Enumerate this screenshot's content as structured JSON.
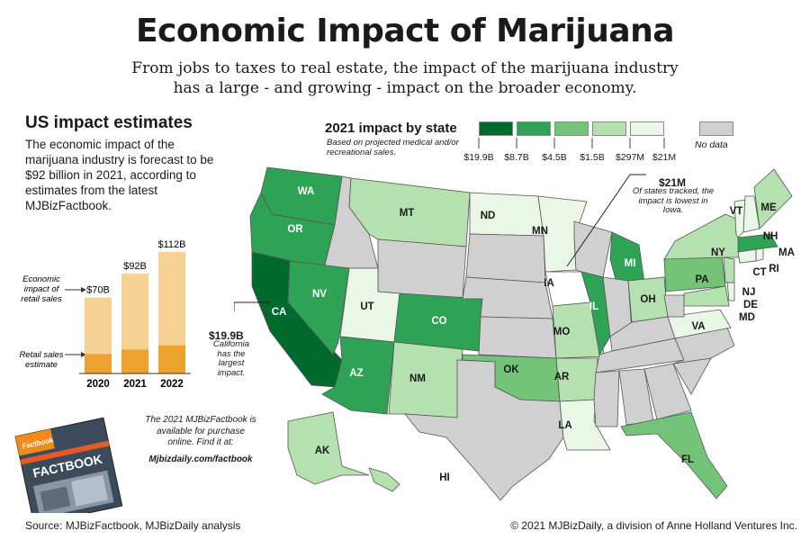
{
  "title": "Economic Impact of Marijuana",
  "subtitle_line1": "From jobs to taxes to real estate, the impact of the marijuana industry",
  "subtitle_line2": "has a large - and growing - impact on the broader economy.",
  "us_section": {
    "heading": "US impact estimates",
    "text": "The economic impact of the marijuana industry is forecast to be $92 billion in 2021, according to estimates from the latest MJBizFactbook."
  },
  "factbook": {
    "cover_brand": "Factbook",
    "cover_title": "FACTBOOK",
    "note": "The 2021 MJBizFactbook is available for purchase online. Find it at:",
    "link": "Mjbizdaily.com/factbook"
  },
  "footer": {
    "source": "Source: MJBizFactbook, MJBizDaily analysis",
    "copyright": "© 2021 MJBizDaily, a division of Anne Holland Ventures Inc."
  },
  "colors": {
    "economic_impact": "#f5d193",
    "retail_sales": "#eda12e",
    "no_data": "#d0d0d0",
    "border": "#555555"
  },
  "chart_data": [
    {
      "type": "bar",
      "categories": [
        "2020",
        "2021",
        "2022"
      ],
      "series": [
        {
          "name": "Retail sales estimate",
          "values": [
            18,
            22,
            26
          ]
        },
        {
          "name": "Economic impact of retail sales",
          "values": [
            70,
            92,
            112
          ]
        }
      ],
      "totals": [
        70,
        92,
        112
      ],
      "total_labels": [
        "$70B",
        "$92B",
        "$112B"
      ],
      "series_labels": {
        "economic_impact": "Economic impact of retail sales",
        "retail": "Retail sales estimate"
      },
      "units": "$B",
      "ylim": [
        0,
        112
      ]
    },
    {
      "type": "choropleth",
      "title": "2021 impact by state",
      "note": "Based on projected medical and/or recreational sales.",
      "legend": [
        {
          "label": "$19.9B",
          "color": "#006a2c"
        },
        {
          "label": "$8.7B",
          "color": "#2ea356"
        },
        {
          "label": "$4.5B",
          "color": "#73c479"
        },
        {
          "label": "$1.5B",
          "color": "#b5e0b0"
        },
        {
          "label": "$297M",
          "color": "#eaf7e6"
        },
        {
          "label": "$21M",
          "color": ""
        }
      ],
      "no_data_label": "No data",
      "states_with_data": [
        {
          "abbr": "WA",
          "tier": 1
        },
        {
          "abbr": "OR",
          "tier": 1
        },
        {
          "abbr": "CA",
          "tier": 0
        },
        {
          "abbr": "NV",
          "tier": 1
        },
        {
          "abbr": "AZ",
          "tier": 1
        },
        {
          "abbr": "CO",
          "tier": 1
        },
        {
          "abbr": "MI",
          "tier": 1
        },
        {
          "abbr": "IL",
          "tier": 1
        },
        {
          "abbr": "MA",
          "tier": 1
        },
        {
          "abbr": "OK",
          "tier": 2
        },
        {
          "abbr": "FL",
          "tier": 2
        },
        {
          "abbr": "PA",
          "tier": 2
        },
        {
          "abbr": "MT",
          "tier": 3
        },
        {
          "abbr": "NM",
          "tier": 3
        },
        {
          "abbr": "MO",
          "tier": 3
        },
        {
          "abbr": "AR",
          "tier": 3
        },
        {
          "abbr": "OH",
          "tier": 3
        },
        {
          "abbr": "NY",
          "tier": 3
        },
        {
          "abbr": "ME",
          "tier": 3
        },
        {
          "abbr": "NJ",
          "tier": 3
        },
        {
          "abbr": "MD",
          "tier": 3
        },
        {
          "abbr": "AK",
          "tier": 3
        },
        {
          "abbr": "HI",
          "tier": 3
        },
        {
          "abbr": "ND",
          "tier": 4
        },
        {
          "abbr": "MN",
          "tier": 4
        },
        {
          "abbr": "UT",
          "tier": 4
        },
        {
          "abbr": "LA",
          "tier": 4
        },
        {
          "abbr": "VA",
          "tier": 4
        },
        {
          "abbr": "VT",
          "tier": 4
        },
        {
          "abbr": "NH",
          "tier": 4
        },
        {
          "abbr": "CT",
          "tier": 4
        },
        {
          "abbr": "RI",
          "tier": 4
        },
        {
          "abbr": "DE",
          "tier": 4
        },
        {
          "abbr": "IA",
          "tier": 5
        }
      ],
      "annotations": [
        {
          "state": "IA",
          "value": "$21M",
          "text": "Of states tracked, the impact is lowest in Iowa."
        },
        {
          "state": "CA",
          "value": "$19.9B",
          "text": "California has the largest impact."
        }
      ]
    }
  ]
}
